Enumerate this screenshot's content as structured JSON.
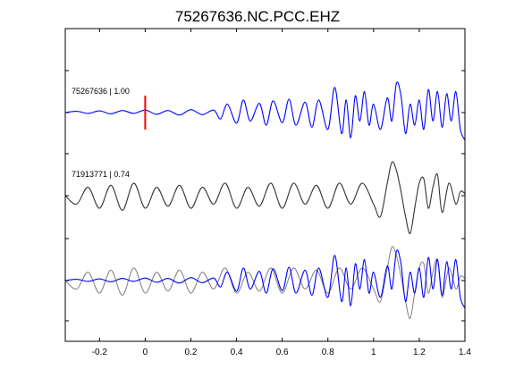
{
  "chart_data": {
    "type": "line",
    "title": "75267636.NC.PCC.EHZ",
    "xlabel": "",
    "ylabel": "",
    "xlim": [
      -0.35,
      1.4
    ],
    "x_ticks": [
      -0.2,
      0,
      0.2,
      0.4,
      0.6,
      0.8,
      1,
      1.2,
      1.4
    ],
    "x_tick_labels": [
      "-0.2",
      "0",
      "0.2",
      "0.4",
      "0.6",
      "0.8",
      "1",
      "1.2",
      "1.4"
    ],
    "grid": false,
    "pick_time": 0,
    "pick_color": "#ff0000",
    "traces": [
      {
        "label": "75267636 | 1.00",
        "offset": 2,
        "color": "#0000ff",
        "x": [
          -0.35,
          -0.3,
          -0.25,
          -0.2,
          -0.15,
          -0.1,
          -0.05,
          0,
          0.05,
          0.1,
          0.15,
          0.2,
          0.25,
          0.3,
          0.33,
          0.36,
          0.4,
          0.43,
          0.46,
          0.5,
          0.53,
          0.56,
          0.6,
          0.63,
          0.66,
          0.7,
          0.73,
          0.76,
          0.8,
          0.83,
          0.86,
          0.88,
          0.9,
          0.92,
          0.94,
          0.96,
          0.98,
          1.0,
          1.03,
          1.06,
          1.08,
          1.1,
          1.12,
          1.14,
          1.16,
          1.18,
          1.2,
          1.22,
          1.24,
          1.26,
          1.28,
          1.3,
          1.32,
          1.34,
          1.36,
          1.38,
          1.4
        ],
        "y": [
          0,
          0.03,
          -0.02,
          0.04,
          -0.03,
          0.05,
          -0.02,
          0.06,
          -0.04,
          0.05,
          -0.06,
          0.07,
          -0.05,
          0.06,
          -0.15,
          0.2,
          -0.25,
          0.3,
          -0.2,
          0.22,
          -0.3,
          0.28,
          -0.24,
          0.32,
          -0.3,
          0.25,
          -0.35,
          0.3,
          -0.4,
          0.6,
          -0.5,
          0.3,
          -0.6,
          0.4,
          -0.2,
          0.5,
          -0.3,
          0.2,
          -0.4,
          0.35,
          -0.2,
          0.7,
          0.4,
          -0.5,
          0.2,
          -0.3,
          0.3,
          -0.4,
          0.55,
          -0.2,
          0.5,
          -0.35,
          0.45,
          -0.2,
          0.5,
          -0.4,
          -0.65
        ]
      },
      {
        "label": "71913771 | 0.74",
        "offset": 1,
        "color": "#333333",
        "x": [
          -0.35,
          -0.3,
          -0.25,
          -0.2,
          -0.15,
          -0.1,
          -0.05,
          0,
          0.05,
          0.1,
          0.15,
          0.2,
          0.25,
          0.3,
          0.35,
          0.4,
          0.45,
          0.5,
          0.55,
          0.6,
          0.65,
          0.7,
          0.75,
          0.8,
          0.85,
          0.9,
          0.95,
          1.0,
          1.03,
          1.06,
          1.08,
          1.1,
          1.12,
          1.14,
          1.16,
          1.18,
          1.2,
          1.22,
          1.24,
          1.26,
          1.28,
          1.3,
          1.33,
          1.36,
          1.38,
          1.4
        ],
        "y": [
          0,
          -0.2,
          0.2,
          -0.3,
          0.25,
          -0.35,
          0.3,
          -0.3,
          0.2,
          -0.25,
          0.25,
          -0.3,
          0.2,
          -0.2,
          0.3,
          -0.3,
          0.2,
          -0.25,
          0.3,
          -0.3,
          0.3,
          -0.2,
          0.25,
          -0.3,
          0.3,
          -0.2,
          0.3,
          -0.2,
          -0.5,
          0.3,
          0.8,
          0.6,
          0.1,
          -0.5,
          -0.9,
          -0.3,
          0.3,
          0.4,
          -0.3,
          0.2,
          0.5,
          -0.4,
          0.3,
          -0.2,
          0.1,
          0.05
        ]
      },
      {
        "label": "",
        "offset": 0,
        "color": "#0000ff",
        "overlay_color": "#808080",
        "x": [
          -0.35,
          -0.3,
          -0.25,
          -0.2,
          -0.15,
          -0.1,
          -0.05,
          0,
          0.05,
          0.1,
          0.15,
          0.2,
          0.25,
          0.3,
          0.33,
          0.36,
          0.4,
          0.43,
          0.46,
          0.5,
          0.53,
          0.56,
          0.6,
          0.63,
          0.66,
          0.7,
          0.73,
          0.76,
          0.8,
          0.83,
          0.86,
          0.88,
          0.9,
          0.92,
          0.94,
          0.96,
          0.98,
          1.0,
          1.03,
          1.06,
          1.08,
          1.1,
          1.12,
          1.14,
          1.16,
          1.18,
          1.2,
          1.22,
          1.24,
          1.26,
          1.28,
          1.3,
          1.32,
          1.34,
          1.36,
          1.38,
          1.4
        ],
        "y": [
          0,
          0.03,
          -0.02,
          0.04,
          -0.03,
          0.05,
          -0.02,
          0.06,
          -0.04,
          0.05,
          -0.06,
          0.07,
          -0.05,
          0.06,
          -0.15,
          0.2,
          -0.25,
          0.3,
          -0.2,
          0.22,
          -0.3,
          0.28,
          -0.24,
          0.32,
          -0.3,
          0.25,
          -0.35,
          0.3,
          -0.4,
          0.6,
          -0.5,
          0.3,
          -0.6,
          0.4,
          -0.2,
          0.5,
          -0.3,
          0.2,
          -0.4,
          0.35,
          -0.2,
          0.7,
          0.4,
          -0.5,
          0.2,
          -0.3,
          0.3,
          -0.4,
          0.55,
          -0.2,
          0.5,
          -0.35,
          0.45,
          -0.2,
          0.5,
          -0.4,
          -0.65
        ],
        "overlay_x": [
          -0.35,
          -0.3,
          -0.25,
          -0.2,
          -0.15,
          -0.1,
          -0.05,
          0,
          0.05,
          0.1,
          0.15,
          0.2,
          0.25,
          0.3,
          0.35,
          0.4,
          0.45,
          0.5,
          0.55,
          0.6,
          0.65,
          0.7,
          0.75,
          0.8,
          0.85,
          0.9,
          0.95,
          1.0,
          1.03,
          1.06,
          1.08,
          1.1,
          1.12,
          1.14,
          1.16,
          1.18,
          1.2,
          1.22,
          1.24,
          1.26,
          1.28,
          1.3,
          1.33,
          1.36,
          1.38,
          1.4
        ],
        "overlay_y": [
          0,
          -0.2,
          0.2,
          -0.3,
          0.25,
          -0.35,
          0.3,
          -0.3,
          0.2,
          -0.25,
          0.25,
          -0.3,
          0.2,
          -0.2,
          0.3,
          -0.3,
          0.2,
          -0.25,
          0.3,
          -0.3,
          0.3,
          -0.2,
          0.25,
          -0.3,
          0.3,
          -0.2,
          0.3,
          -0.2,
          -0.5,
          0.3,
          0.8,
          0.6,
          0.1,
          -0.5,
          -0.9,
          -0.3,
          0.3,
          0.4,
          -0.3,
          0.2,
          0.5,
          -0.4,
          0.3,
          -0.2,
          0.1,
          0.05
        ]
      }
    ]
  }
}
